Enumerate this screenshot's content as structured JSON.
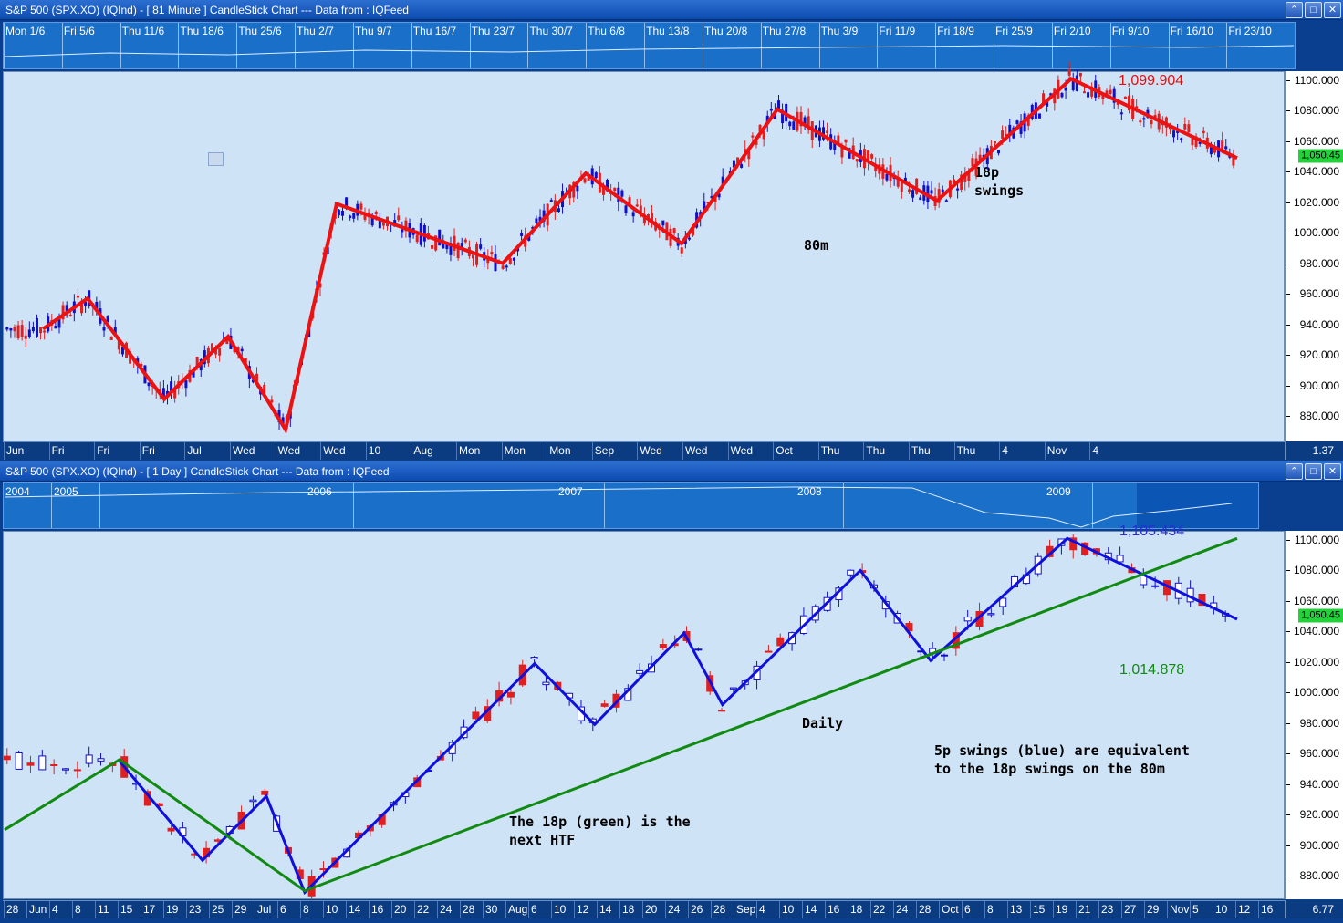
{
  "top_panel": {
    "title": "S&P 500 (SPX.XO) (IQInd) -  [ 81 Minute ] CandleStick Chart --- Data from : IQFeed",
    "nav_labels": [
      "Mon 1/6",
      "Fri 5/6",
      "Thu 11/6",
      "Thu 18/6",
      "Thu 25/6",
      "Thu 2/7",
      "Thu 9/7",
      "Thu 16/7",
      "Thu 23/7",
      "Thu 30/7",
      "Thu 6/8",
      "Thu 13/8",
      "Thu 20/8",
      "Thu 27/8",
      "Thu 3/9",
      "Fri 11/9",
      "Fri 18/9",
      "Fri 25/9",
      "Fri 2/10",
      "Fri 9/10",
      "Fri 16/10",
      "Fri 23/10"
    ],
    "x_labels": [
      "Jun",
      "Fri",
      "Fri",
      "Fri",
      "Jul",
      "Wed",
      "Wed",
      "Wed",
      "10",
      "Aug",
      "Mon",
      "Mon",
      "Mon",
      "Sep",
      "Wed",
      "Wed",
      "Wed",
      "Oct",
      "Thu",
      "Thu",
      "Thu",
      "Thu",
      "4",
      "Nov",
      "4"
    ],
    "x_right_value": "1.37",
    "y_ticks": [
      "1100.000",
      "1080.000",
      "1060.000",
      "1040.000",
      "1020.000",
      "1000.000",
      "980.000",
      "960.000",
      "940.000",
      "920.000",
      "900.000",
      "880.000"
    ],
    "last_price": "1,050.45",
    "hi_label": "1,099.904",
    "notes": {
      "swings": "18p\nswings",
      "timeframe": "80m"
    }
  },
  "bottom_panel": {
    "title": "S&P 500 (SPX.XO) (IQInd) -  [ 1 Day ] CandleStick Chart --- Data from : IQFeed",
    "nav_labels": [
      "2004",
      "2005",
      "2006",
      "2007",
      "2008",
      "2009"
    ],
    "x_labels": [
      "28",
      "Jun",
      "4",
      "8",
      "11",
      "15",
      "17",
      "19",
      "23",
      "25",
      "29",
      "Jul",
      "6",
      "8",
      "10",
      "14",
      "16",
      "20",
      "22",
      "24",
      "28",
      "30",
      "Aug",
      "6",
      "10",
      "12",
      "14",
      "18",
      "20",
      "24",
      "26",
      "28",
      "Sep",
      "4",
      "10",
      "14",
      "16",
      "18",
      "22",
      "24",
      "28",
      "Oct",
      "6",
      "8",
      "13",
      "15",
      "19",
      "21",
      "23",
      "27",
      "29",
      "Nov",
      "5",
      "10",
      "12",
      "16"
    ],
    "x_right_value": "6.77",
    "y_ticks": [
      "1100.000",
      "1080.000",
      "1060.000",
      "1040.000",
      "1020.000",
      "1000.000",
      "980.000",
      "960.000",
      "940.000",
      "920.000",
      "900.000",
      "880.000"
    ],
    "last_price": "1,050.45",
    "hi_label": "1,105.434",
    "lo_label": "1,014.878",
    "notes": {
      "daily": "Daily",
      "green": "The 18p (green) is the\nnext HTF",
      "blue": "5p swings (blue) are equivalent\nto the 18p swings on the 80m"
    }
  },
  "chart_data": [
    {
      "type": "line",
      "title": "S&P 500 (SPX.XO) (IQInd) -  [ 81 Minute ] CandleStick Chart --- Data from : IQFeed",
      "ylim": [
        870,
        1105
      ],
      "grid": false,
      "series": [
        {
          "name": "18p swings",
          "color": "#ee1111",
          "x": [
            0.03,
            0.065,
            0.125,
            0.175,
            0.22,
            0.26,
            0.39,
            0.455,
            0.53,
            0.605,
            0.73,
            0.835,
            0.965
          ],
          "values": [
            937,
            957,
            891,
            932,
            871,
            1019,
            980,
            1039,
            993,
            1081,
            1021,
            1101,
            1049
          ]
        }
      ],
      "candles_approx": "blue=up, red=down, price ranges ~870-1101"
    },
    {
      "type": "line",
      "title": "S&P 500 (SPX.XO) (IQInd) -  [ 1 Day ] CandleStick Chart --- Data from : IQFeed",
      "ylim": [
        865,
        1105
      ],
      "grid": false,
      "series": [
        {
          "name": "5p swings",
          "color": "#1010dd",
          "x": [
            0.09,
            0.155,
            0.205,
            0.235,
            0.415,
            0.462,
            0.532,
            0.562,
            0.67,
            0.725,
            0.832,
            0.965
          ],
          "values": [
            955,
            890,
            932,
            869,
            1019,
            979,
            1039,
            992,
            1080,
            1021,
            1101,
            1048
          ]
        },
        {
          "name": "18p (green)",
          "color": "#118a11",
          "x": [
            0.0,
            0.09,
            0.235,
            0.965
          ],
          "values": [
            910,
            956,
            870,
            1101
          ]
        }
      ]
    }
  ]
}
